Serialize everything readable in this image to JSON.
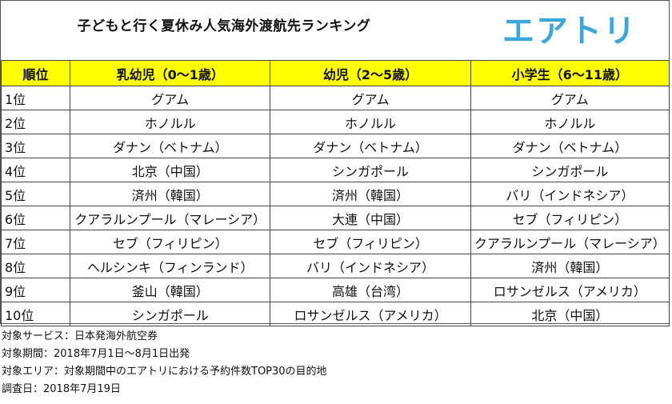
{
  "title": "子どもと行く夏休み人気海外渡航先ランキング",
  "logo": "エアトリ",
  "colors": {
    "header_bg": "#ffff00",
    "logo": "#3aa6de"
  },
  "table": {
    "headers": [
      "順位",
      "乳幼児（0～1歳）",
      "幼児（2～5歳）",
      "小学生（6～11歳）"
    ],
    "rows": [
      [
        "1位",
        "グアム",
        "グアム",
        "グアム"
      ],
      [
        "2位",
        "ホノルル",
        "ホノルル",
        "ホノルル"
      ],
      [
        "3位",
        "ダナン（ベトナム）",
        "ダナン（ベトナム）",
        "ダナン（ベトナム）"
      ],
      [
        "4位",
        "北京（中国）",
        "シンガポール",
        "シンガポール"
      ],
      [
        "5位",
        "済州（韓国）",
        "済州（韓国）",
        "バリ（インドネシア）"
      ],
      [
        "6位",
        "クアラルンプール（マレーシア）",
        "大連（中国）",
        "セブ（フィリピン）"
      ],
      [
        "7位",
        "セブ（フィリピン）",
        "セブ（フィリピン）",
        "クアラルンプール（マレーシア）"
      ],
      [
        "8位",
        "ヘルシンキ（フィンランド）",
        "バリ（インドネシア）",
        "済州（韓国）"
      ],
      [
        "9位",
        "釜山（韓国）",
        "高雄（台湾）",
        "ロサンゼルス（アメリカ）"
      ],
      [
        "10位",
        "シンガポール",
        "ロサンゼルス（アメリカ）",
        "北京（中国）"
      ]
    ]
  },
  "notes": [
    "対象サービス：日本発海外航空券",
    "対象期間：2018年7月1日～8月1日出発",
    "対象エリア：対象期間中のエアトリにおける予約件数TOP30の目的地",
    "調査日：2018年7月19日"
  ]
}
